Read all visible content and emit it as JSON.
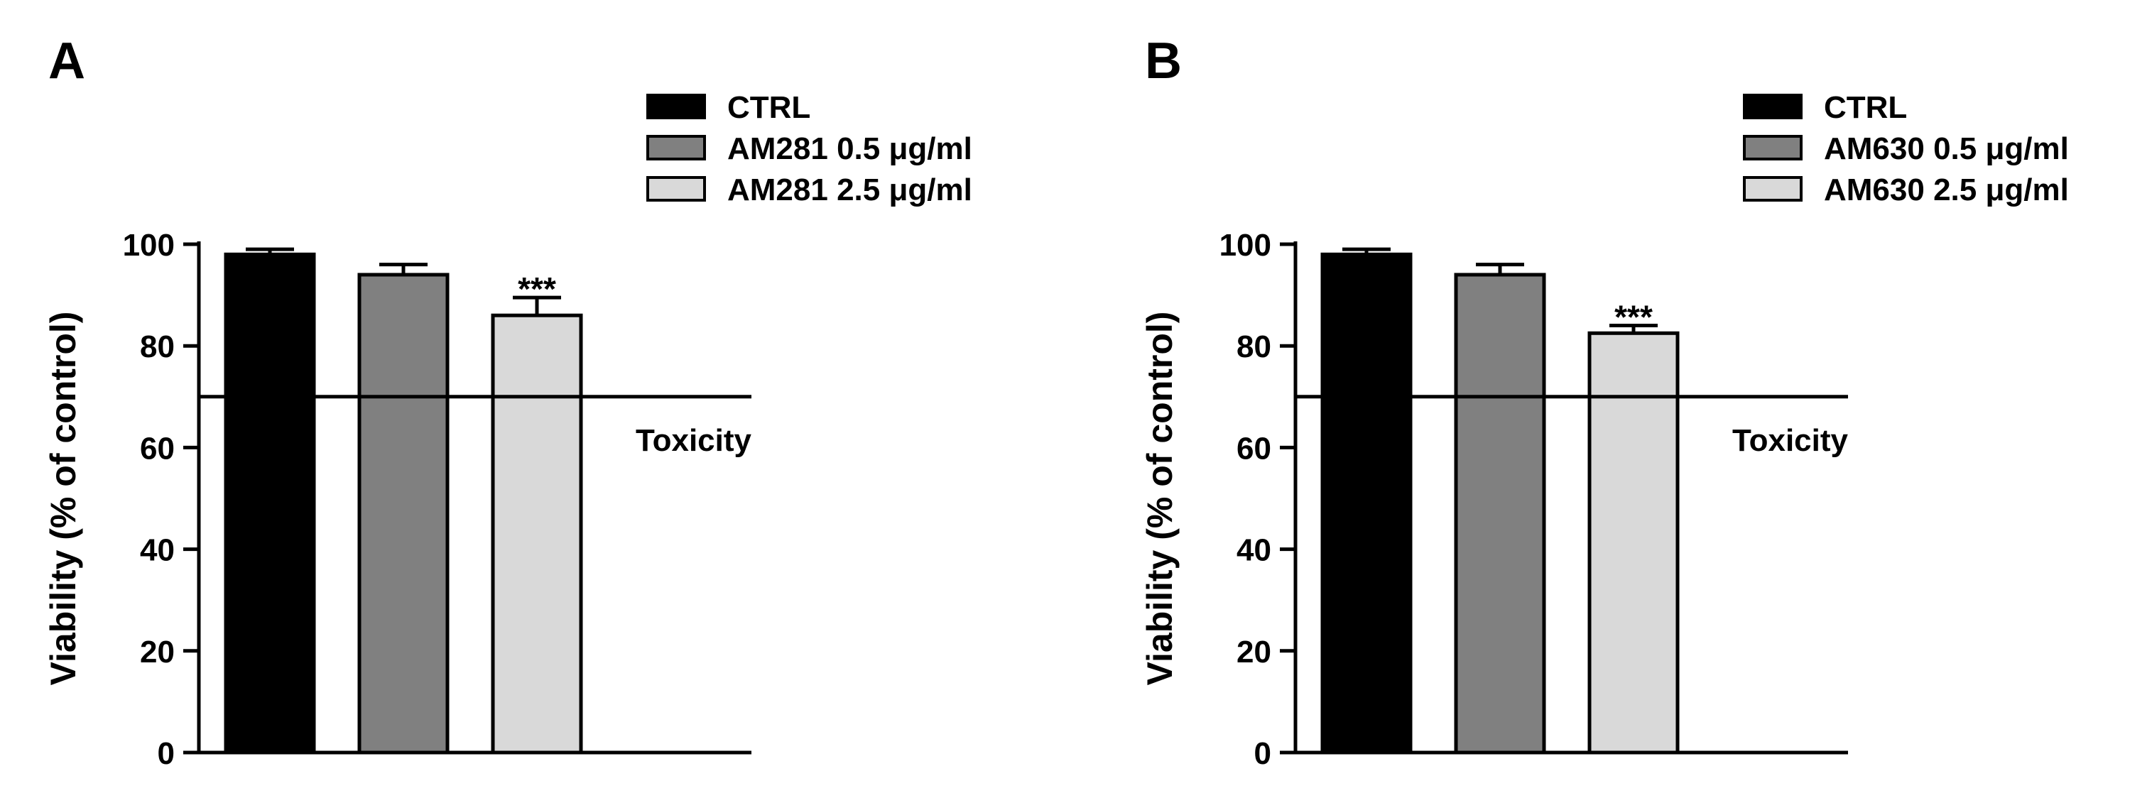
{
  "chart_data": [
    {
      "type": "bar",
      "panel_label": "A",
      "categories": [
        "CTRL",
        "AM281 0.5 μg/ml",
        "AM281 2.5 μg/ml"
      ],
      "values": [
        98,
        94,
        86
      ],
      "errors": [
        1,
        2,
        3.5
      ],
      "colors": [
        "#000000",
        "#808080",
        "#d9d9d9"
      ],
      "significance": [
        "",
        "",
        "***"
      ],
      "ylabel": "Viability (% of control)",
      "ylim": [
        0,
        100
      ],
      "yticks": [
        "0",
        "20",
        "40",
        "60",
        "80",
        "100"
      ],
      "reference_line": {
        "value": 70,
        "label": "Toxicity"
      },
      "legend": [
        "CTRL",
        "AM281 0.5 μg/ml",
        "AM281 2.5 μg/ml"
      ],
      "legend_position": "top-right",
      "grid": false
    },
    {
      "type": "bar",
      "panel_label": "B",
      "categories": [
        "CTRL",
        "AM630 0.5 μg/ml",
        "AM630 2.5 μg/ml"
      ],
      "values": [
        98,
        94,
        82.5
      ],
      "errors": [
        1,
        2,
        1.5
      ],
      "colors": [
        "#000000",
        "#808080",
        "#d9d9d9"
      ],
      "significance": [
        "",
        "",
        "***"
      ],
      "ylabel": "Viability (% of control)",
      "ylim": [
        0,
        100
      ],
      "yticks": [
        "0",
        "20",
        "40",
        "60",
        "80",
        "100"
      ],
      "reference_line": {
        "value": 70,
        "label": "Toxicity"
      },
      "legend": [
        "CTRL",
        "AM630 0.5 μg/ml",
        "AM630 2.5 μg/ml"
      ],
      "legend_position": "top-right",
      "grid": false
    }
  ]
}
